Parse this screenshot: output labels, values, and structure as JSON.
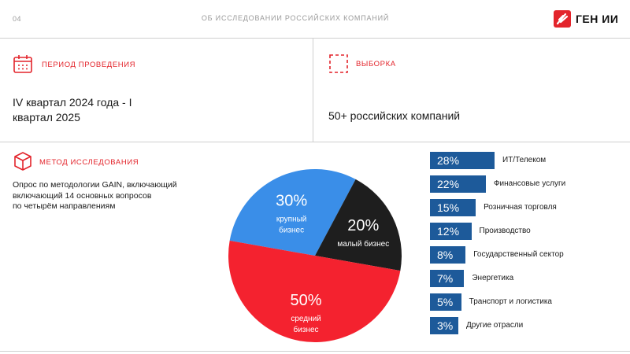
{
  "header": {
    "slide_number": "04",
    "title": "ОБ ИССЛЕДОВАНИИ РОССИЙСКИХ КОМПАНИЙ",
    "logo_text": "ГЕН ИИ"
  },
  "period": {
    "icon": "calendar-icon",
    "title": "ПЕРИОД ПРОВЕДЕНИЯ",
    "line1": "IV квартал 2024 года - I",
    "line2": "квартал 2025"
  },
  "sample": {
    "icon": "dashed-square-icon",
    "title": "ВЫБОРКА",
    "value": "50+ российских компаний"
  },
  "method": {
    "icon": "cube-icon",
    "title": "МЕТОД ИССЛЕДОВАНИЯ",
    "lines": [
      "Опрос по методологии GAIN, включающий",
      "включающий 14 основных вопросов",
      "по четырём направлениям"
    ]
  },
  "colors": {
    "accent": "#e3242b",
    "pie_red": "#f4222f",
    "pie_blue": "#3a8ee8",
    "pie_black": "#1e1e1e",
    "bar_blue": "#1d5a9a"
  },
  "chart_data": [
    {
      "type": "pie",
      "slices": [
        {
          "value": 30,
          "label": "30%",
          "name_lines": [
            "крупный",
            "бизнес"
          ],
          "color": "#3a8ee8"
        },
        {
          "value": 20,
          "label": "20%",
          "name_lines": [
            "малый бизнес"
          ],
          "color": "#1e1e1e"
        },
        {
          "value": 50,
          "label": "50%",
          "name_lines": [
            "средний",
            "бизнес"
          ],
          "color": "#f4222f"
        }
      ]
    },
    {
      "type": "bar",
      "categories": [
        "ИТ/Телеком",
        "Финансовые услуги",
        "Розничная торговля",
        "Производство",
        "Государственный сектор",
        "Энергетика",
        "Транспорт и логистика",
        "Другие отрасли"
      ],
      "values": [
        28,
        22,
        15,
        12,
        8,
        7,
        5,
        3
      ],
      "value_labels": [
        "28%",
        "22%",
        "15%",
        "12%",
        "8%",
        "7%",
        "5%",
        "3%"
      ],
      "color": "#1d5a9a"
    }
  ]
}
